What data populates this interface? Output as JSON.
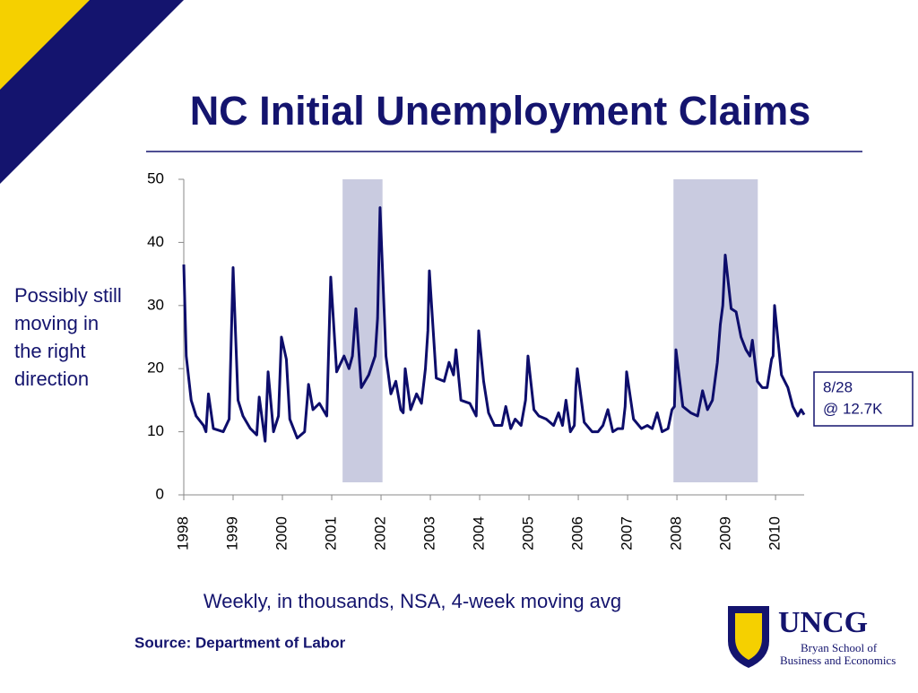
{
  "chart_data": {
    "type": "line",
    "title": "NC Initial Unemployment Claims",
    "subtitle": "Weekly, in thousands, NSA, 4-week moving avg",
    "source": "Source:  Department of Labor",
    "annotation": "Possibly still moving in the right direction",
    "callout": [
      "8/28",
      "@ 12.7K"
    ],
    "color": "#0d0d6b",
    "shade_color": "#c9cbe0",
    "shaded_regions": [
      [
        2001.22,
        2002.03
      ],
      [
        2007.93,
        2009.64
      ]
    ],
    "x": [
      1998.0,
      1998.05,
      1998.15,
      1998.25,
      1998.4,
      1998.45,
      1998.5,
      1998.6,
      1998.8,
      1998.92,
      1999.0,
      1999.1,
      1999.2,
      1999.35,
      1999.48,
      1999.53,
      1999.65,
      1999.71,
      1999.82,
      1999.92,
      1999.98,
      2000.08,
      2000.15,
      2000.3,
      2000.45,
      2000.53,
      2000.62,
      2000.75,
      2000.9,
      2000.98,
      2001.1,
      2001.25,
      2001.35,
      2001.42,
      2001.49,
      2001.6,
      2001.75,
      2001.88,
      2001.93,
      2001.98,
      2002.1,
      2002.2,
      2002.3,
      2002.4,
      2002.45,
      2002.49,
      2002.6,
      2002.72,
      2002.82,
      2002.9,
      2002.95,
      2002.98,
      2003.12,
      2003.28,
      2003.38,
      2003.47,
      2003.52,
      2003.62,
      2003.8,
      2003.93,
      2003.98,
      2004.08,
      2004.18,
      2004.3,
      2004.45,
      2004.53,
      2004.63,
      2004.72,
      2004.84,
      2004.93,
      2004.98,
      2005.1,
      2005.2,
      2005.35,
      2005.5,
      2005.6,
      2005.68,
      2005.75,
      2005.84,
      2005.92,
      2005.95,
      2005.98,
      2006.12,
      2006.28,
      2006.4,
      2006.5,
      2006.6,
      2006.7,
      2006.8,
      2006.9,
      2006.95,
      2006.98,
      2007.12,
      2007.28,
      2007.4,
      2007.5,
      2007.6,
      2007.7,
      2007.82,
      2007.9,
      2007.95,
      2007.98,
      2008.12,
      2008.28,
      2008.42,
      2008.52,
      2008.62,
      2008.72,
      2008.82,
      2008.88,
      2008.93,
      2008.98,
      2009.1,
      2009.2,
      2009.3,
      2009.4,
      2009.48,
      2009.53,
      2009.63,
      2009.73,
      2009.83,
      2009.92,
      2009.95,
      2009.98,
      2010.12,
      2010.25,
      2010.35,
      2010.45,
      2010.52,
      2010.58
    ],
    "values": [
      36.5,
      22,
      15,
      12.5,
      11,
      10,
      16,
      10.5,
      10,
      12,
      36,
      15,
      12.5,
      10.5,
      9.5,
      15.5,
      8.5,
      19.5,
      10,
      12.5,
      25,
      21.5,
      12,
      9,
      10,
      17.5,
      13.5,
      14.5,
      12.5,
      34.5,
      19.5,
      22,
      20,
      22,
      29.5,
      17,
      19,
      22,
      28,
      45.5,
      22,
      16,
      18,
      13.5,
      13,
      20,
      13.5,
      16,
      14.5,
      20,
      26,
      35.5,
      18.5,
      18,
      21,
      19,
      23,
      15,
      14.5,
      12.5,
      26,
      18,
      13,
      11,
      11,
      14,
      10.5,
      12,
      11,
      15,
      22,
      13.5,
      12.5,
      12,
      11,
      13,
      11,
      15,
      10,
      11,
      17,
      20,
      11.5,
      10,
      10,
      11,
      13.5,
      10,
      10.5,
      10.5,
      14,
      19.5,
      12,
      10.5,
      11,
      10.5,
      13,
      10,
      10.5,
      13.5,
      14,
      23,
      14,
      13,
      12.5,
      16.5,
      13.5,
      15,
      21,
      27,
      30,
      38,
      29.5,
      29,
      25,
      23,
      22,
      24.5,
      18,
      17,
      17,
      21.5,
      22,
      30,
      19,
      17,
      14,
      12.5,
      13.5,
      12.7
    ],
    "xlim": [
      1998,
      2010.58
    ],
    "xticks": [
      1998,
      1999,
      2000,
      2001,
      2002,
      2003,
      2004,
      2005,
      2006,
      2007,
      2008,
      2009,
      2010
    ],
    "ylim": [
      0,
      50
    ],
    "yticks": [
      0,
      10,
      20,
      30,
      40,
      50
    ],
    "logo": {
      "name": "UNCG",
      "line1": "Bryan School of",
      "line2": "Business and Economics"
    }
  }
}
